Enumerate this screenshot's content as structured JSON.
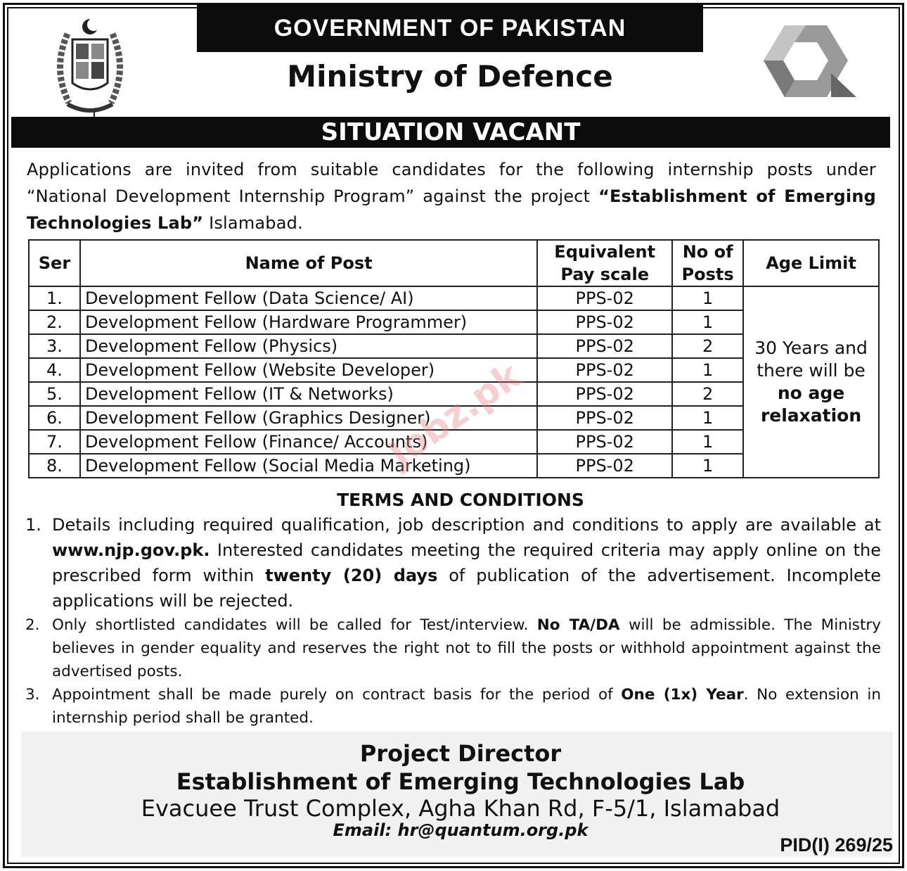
{
  "header": {
    "government": "GOVERNMENT OF PAKISTAN",
    "ministry": "Ministry of Defence",
    "banner": "SITUATION VACANT"
  },
  "intro": {
    "p1": "Applications are invited from suitable candidates for the following internship posts under “National Development Internship Program” against the project ",
    "project": "“Establishment of Emerging Technologies Lab”",
    "p2": " Islamabad."
  },
  "table": {
    "headers": [
      "Ser",
      "Name of Post",
      "Equivalent Pay scale",
      "No of Posts",
      "Age Limit"
    ],
    "rows": [
      {
        "ser": "1.",
        "post": "Development Fellow (Data Science/ AI)",
        "scale": "PPS-02",
        "posts": "1"
      },
      {
        "ser": "2.",
        "post": "Development Fellow (Hardware Programmer)",
        "scale": "PPS-02",
        "posts": "1"
      },
      {
        "ser": "3.",
        "post": "Development Fellow (Physics)",
        "scale": "PPS-02",
        "posts": "2"
      },
      {
        "ser": "4.",
        "post": "Development Fellow (Website Developer)",
        "scale": "PPS-02",
        "posts": "1"
      },
      {
        "ser": "5.",
        "post": "Development Fellow (IT & Networks)",
        "scale": "PPS-02",
        "posts": "2"
      },
      {
        "ser": "6.",
        "post": "Development Fellow (Graphics Designer)",
        "scale": "PPS-02",
        "posts": "1"
      },
      {
        "ser": "7.",
        "post": "Development Fellow (Finance/ Accounts)",
        "scale": "PPS-02",
        "posts": "1"
      },
      {
        "ser": "8.",
        "post": "Development Fellow (Social Media Marketing)",
        "scale": "PPS-02",
        "posts": "1"
      }
    ],
    "age_limit": {
      "normal": "30 Years and there will be",
      "bold": "no age relaxation"
    }
  },
  "terms": {
    "title": "TERMS AND CONDITIONS",
    "items": [
      {
        "n": "1.",
        "a": "Details including required qualification, job description and conditions to apply are available at ",
        "b": "www.njp.gov.pk.",
        "c": " Interested candidates meeting the required criteria may apply online on the prescribed form within ",
        "d": "twenty (20) days",
        "e": " of publication of the advertisement. Incomplete applications will be rejected."
      },
      {
        "n": "2.",
        "a": "Only shortlisted candidates will be called for Test/interview. ",
        "b": "No TA/DA",
        "c": " will be admissible. The Ministry believes in gender equality and reserves the right not to fill the posts or withhold appointment against the advertised posts."
      },
      {
        "n": "3.",
        "a": "Appointment shall be made purely on contract basis for the period of ",
        "b": "One (1x) Year",
        "c": ". No extension in internship period shall be granted."
      }
    ]
  },
  "footer": {
    "title": "Project Director",
    "org": "Establishment of Emerging Technologies Lab",
    "address": "Evacuee Trust Complex, Agha Khan Rd, F-5/1, Islamabad",
    "email": "Email: hr@quantum.org.pk",
    "pid": "PID(I) 269/25"
  },
  "watermark": "Jobz.pk"
}
